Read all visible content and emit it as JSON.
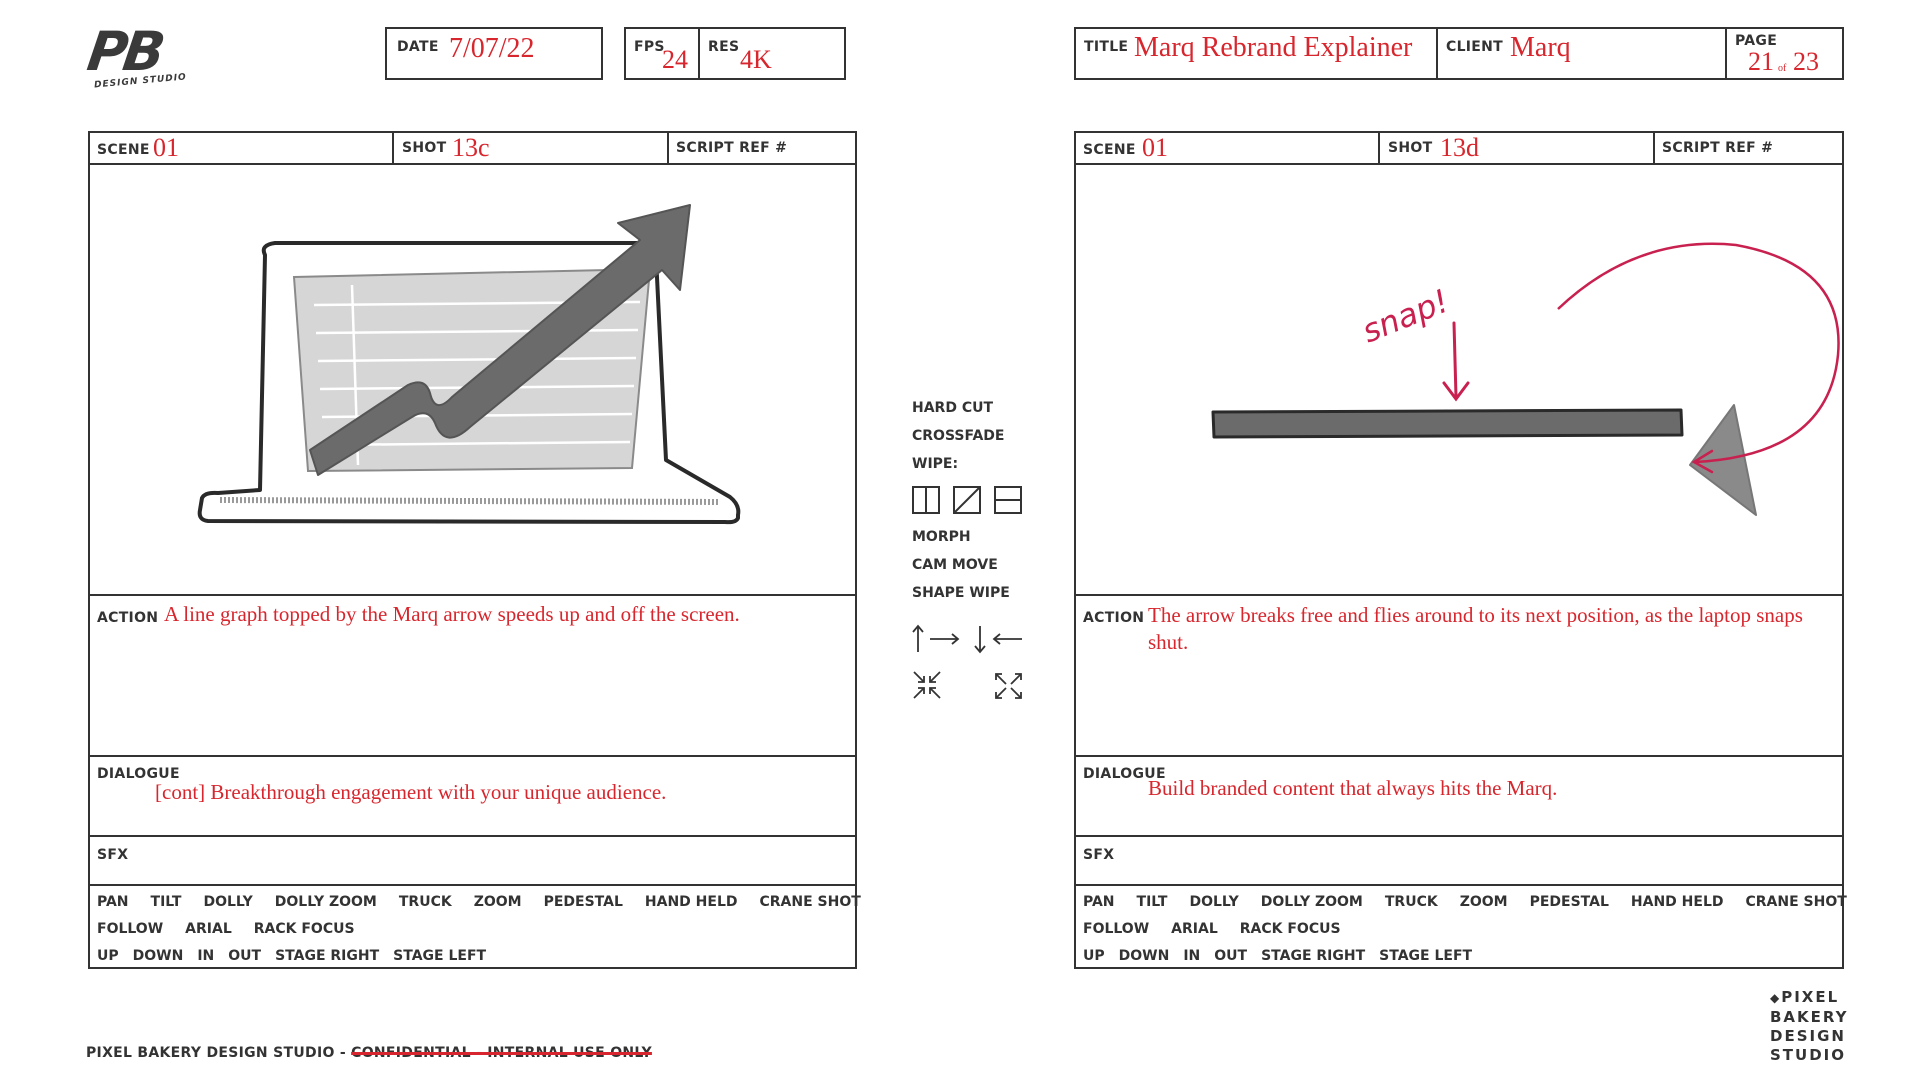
{
  "logo": {
    "letters": "PB",
    "tagline": "DESIGN STUDIO"
  },
  "header": {
    "date_label": "DATE",
    "date_value": "7/07/22",
    "fps_label": "FPS",
    "fps_value": "24",
    "res_label": "RES",
    "res_value": "4K",
    "title_label": "TITLE",
    "title_value": "Marq Rebrand Explainer",
    "client_label": "CLIENT",
    "client_value": "Marq",
    "page_label": "PAGE",
    "page_current": "21",
    "page_of": "of",
    "page_total": "23"
  },
  "panels": [
    {
      "scene_label": "SCENE",
      "scene_value": "01",
      "shot_label": "SHOT",
      "shot_value": "13c",
      "script_ref_label": "SCRIPT REF #",
      "action_label": "ACTION",
      "action_text": "A line graph topped by the Marq arrow speeds up and off the screen.",
      "dialogue_label": "DIALOGUE",
      "dialogue_text": "[cont] Breakthrough engagement with your unique audience.",
      "sfx_label": "SFX"
    },
    {
      "scene_label": "SCENE",
      "scene_value": "01",
      "shot_label": "SHOT",
      "shot_value": "13d",
      "script_ref_label": "SCRIPT REF #",
      "action_label": "ACTION",
      "action_text": "The arrow breaks free and flies around to its next position, as the laptop snaps shut.",
      "dialogue_label": "DIALOGUE",
      "dialogue_text": "Build branded content that always hits the Marq.",
      "sfx_label": "SFX",
      "sketch_annotation": "snap!"
    }
  ],
  "camera_terms": {
    "row1": [
      "PAN",
      "TILT",
      "DOLLY",
      "DOLLY ZOOM",
      "TRUCK",
      "ZOOM",
      "PEDESTAL",
      "HAND HELD",
      "CRANE SHOT"
    ],
    "row2": [
      "FOLLOW",
      "ARIAL",
      "RACK FOCUS"
    ],
    "row3": [
      "UP",
      "DOWN",
      "IN",
      "OUT",
      "STAGE RIGHT",
      "STAGE LEFT"
    ]
  },
  "transitions": {
    "hard_cut": "HARD CUT",
    "crossfade": "CROSSFADE",
    "wipe": "WIPE:",
    "morph": "MORPH",
    "cam_move": "CAM MOVE",
    "shape_wipe": "SHAPE WIPE"
  },
  "footer": {
    "studio_prefix": "PIXEL BAKERY DESIGN STUDIO - ",
    "confidential": "CONFIDENTIAL - INTERNAL USE ONLY",
    "brand_lines": [
      "PIXEL",
      "BAKERY",
      "DESIGN",
      "STUDIO"
    ]
  },
  "colors": {
    "accent_red": "#d7262d",
    "sketch_pink": "#c8204f",
    "ink": "#333333",
    "gray_fill": "#6b6b6b"
  }
}
